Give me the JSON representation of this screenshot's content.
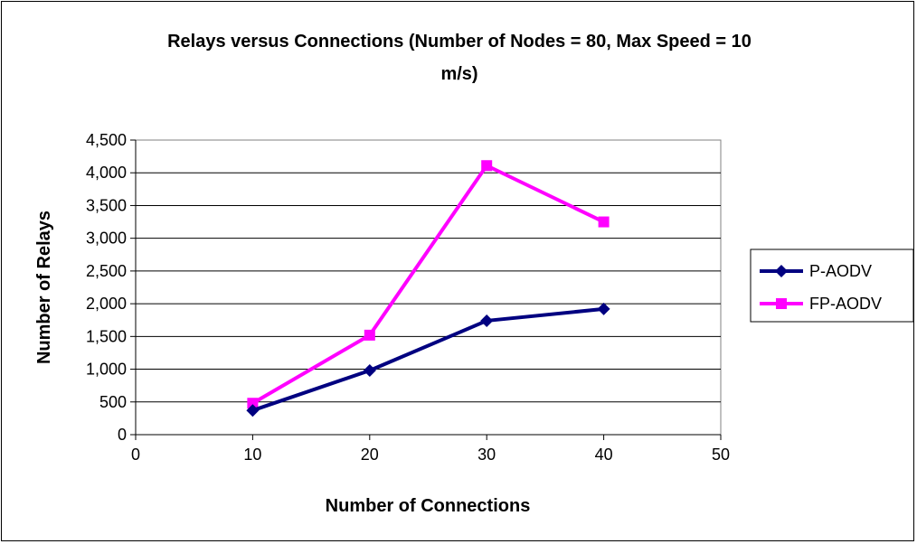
{
  "chart_data": {
    "type": "line",
    "title_line1": "Relays versus Connections (Number of Nodes = 80, Max Speed = 10",
    "title_line2": "m/s)",
    "xlabel": "Number of Connections",
    "ylabel": "Number of Relays",
    "xlim": [
      0,
      50
    ],
    "ylim": [
      0,
      4500
    ],
    "x_ticks": [
      "0",
      "10",
      "20",
      "30",
      "40",
      "50"
    ],
    "y_ticks": [
      "0",
      "500",
      "1,000",
      "1,500",
      "2,000",
      "2,500",
      "3,000",
      "3,500",
      "4,000",
      "4,500"
    ],
    "grid": "horizontal",
    "legend_position": "right",
    "x": [
      10,
      20,
      30,
      40
    ],
    "series": [
      {
        "name": "P-AODV",
        "values": [
          370,
          980,
          1740,
          1920
        ],
        "color": "#000080",
        "marker": "diamond"
      },
      {
        "name": "FP-AODV",
        "values": [
          480,
          1520,
          4110,
          3250
        ],
        "color": "#ff00ff",
        "marker": "square"
      }
    ]
  }
}
